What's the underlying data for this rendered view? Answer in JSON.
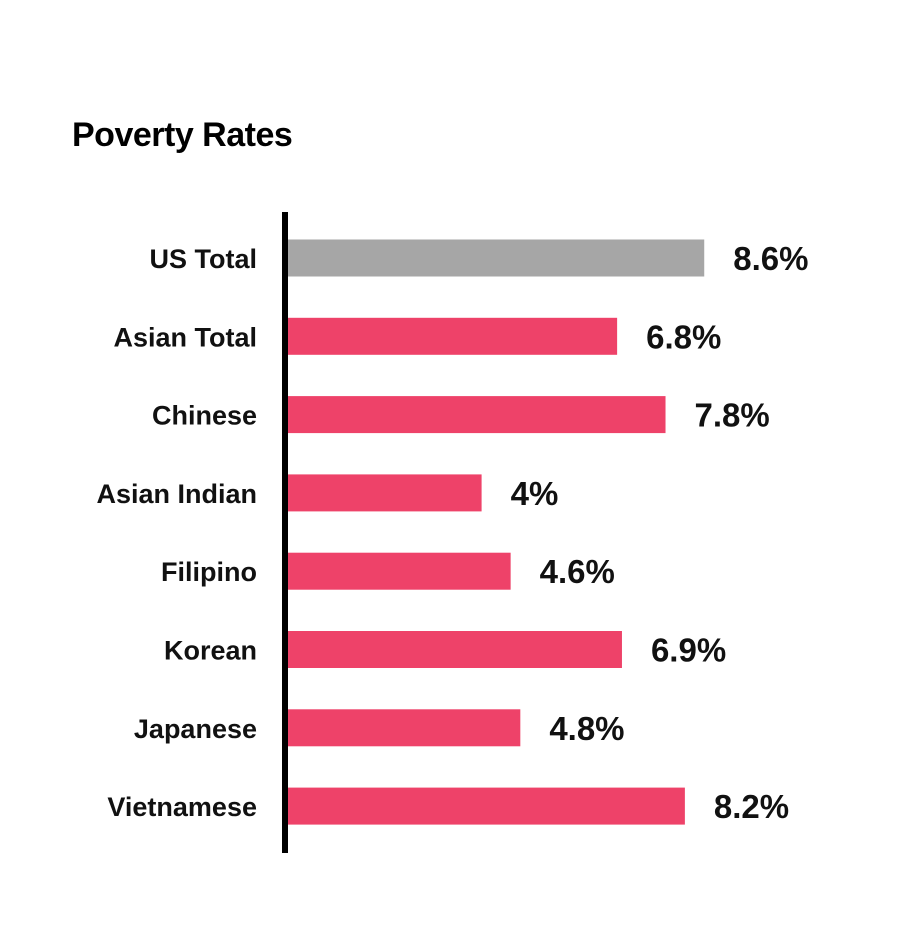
{
  "chart_data": {
    "type": "bar",
    "orientation": "horizontal",
    "title": "Poverty Rates",
    "categories": [
      "US Total",
      "Asian Total",
      "Chinese",
      "Asian Indian",
      "Filipino",
      "Korean",
      "Japanese",
      "Vietnamese"
    ],
    "values": [
      8.6,
      6.8,
      7.8,
      4,
      4.6,
      6.9,
      4.8,
      8.2
    ],
    "value_labels": [
      "8.6%",
      "6.8%",
      "7.8%",
      "4%",
      "4.6%",
      "6.9%",
      "4.8%",
      "8.2%"
    ],
    "unit": "%",
    "colors": [
      "#a6a6a6",
      "#ee4269",
      "#ee4269",
      "#ee4269",
      "#ee4269",
      "#ee4269",
      "#ee4269",
      "#ee4269"
    ],
    "xlim": [
      0,
      10
    ],
    "grid": false,
    "legend": "none"
  }
}
